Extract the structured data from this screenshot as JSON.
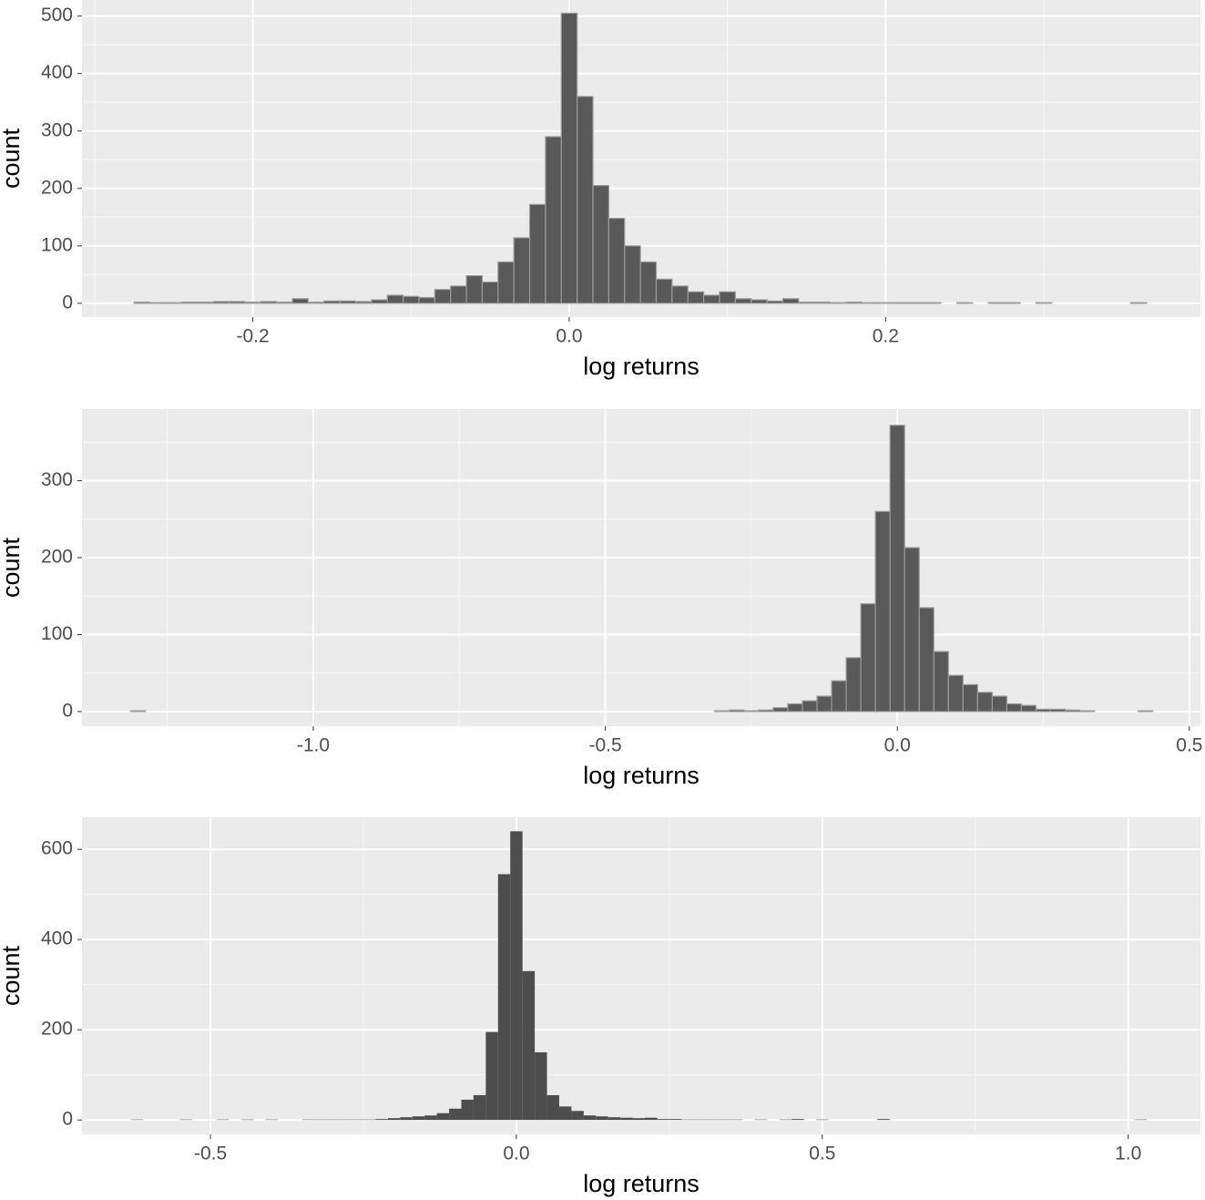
{
  "chart_data": [
    {
      "type": "histogram",
      "bins": [
        -0.275,
        -0.265,
        -0.255,
        -0.245,
        -0.235,
        -0.225,
        -0.215,
        -0.205,
        -0.195,
        -0.185,
        -0.175,
        -0.165,
        -0.155,
        -0.145,
        -0.135,
        -0.125,
        -0.115,
        -0.105,
        -0.095,
        -0.085,
        -0.075,
        -0.065,
        -0.055,
        -0.045,
        -0.035,
        -0.025,
        -0.015,
        -0.005,
        0.005,
        0.015,
        0.025,
        0.035,
        0.045,
        0.055,
        0.065,
        0.075,
        0.085,
        0.095,
        0.105,
        0.115,
        0.125,
        0.135,
        0.145,
        0.155,
        0.165,
        0.175,
        0.185,
        0.195,
        0.205,
        0.215,
        0.225,
        0.235,
        0.245,
        0.255,
        0.265,
        0.275,
        0.285,
        0.295,
        0.305,
        0.315,
        0.325,
        0.335,
        0.345,
        0.355,
        0.365
      ],
      "values": [
        2,
        1,
        1,
        2,
        2,
        3,
        3,
        2,
        3,
        2,
        8,
        2,
        4,
        4,
        3,
        6,
        14,
        12,
        10,
        24,
        30,
        48,
        37,
        72,
        114,
        172,
        290,
        505,
        360,
        205,
        148,
        100,
        72,
        42,
        30,
        20,
        14,
        20,
        8,
        6,
        4,
        8,
        2,
        2,
        1,
        2,
        1,
        1,
        1,
        1,
        1,
        0,
        1,
        0,
        1,
        1,
        0,
        1,
        0,
        0,
        0,
        0,
        0,
        1
      ],
      "color": "#595959",
      "edgecolor": "#9a9a9a",
      "xlim": [
        -0.308,
        0.399
      ],
      "ylim": [
        -24,
        528
      ],
      "xticks": [
        {
          "value": -0.2,
          "label": "-0.2"
        },
        {
          "value": 0,
          "label": "0.0"
        },
        {
          "value": 0.2,
          "label": "0.2"
        }
      ],
      "yticks": [
        0,
        100,
        200,
        300,
        400,
        500
      ],
      "xlabel": "log returns",
      "ylabel": "count",
      "grid": true
    },
    {
      "type": "histogram",
      "bins": [
        -1.3125,
        -1.2875,
        -1.2625,
        -1.2375,
        -1.2125,
        -1.1875,
        -1.1625,
        -1.1375,
        -1.1125,
        -1.0875,
        -1.0625,
        -1.0375,
        -1.0125,
        -0.9875,
        -0.9625,
        -0.9375,
        -0.9125,
        -0.8875,
        -0.8625,
        -0.8375,
        -0.8125,
        -0.7875,
        -0.7625,
        -0.7375,
        -0.7125,
        -0.6875,
        -0.6625,
        -0.6375,
        -0.6125,
        -0.5875,
        -0.5625,
        -0.5375,
        -0.5125,
        -0.4875,
        -0.4625,
        -0.4375,
        -0.4125,
        -0.3875,
        -0.3625,
        -0.3375,
        -0.3125,
        -0.2875,
        -0.2625,
        -0.2375,
        -0.2125,
        -0.1875,
        -0.1625,
        -0.1375,
        -0.1125,
        -0.0875,
        -0.0625,
        -0.0375,
        -0.0125,
        0.0125,
        0.0375,
        0.0625,
        0.0875,
        0.1125,
        0.1375,
        0.1625,
        0.1875,
        0.2125,
        0.2375,
        0.2625,
        0.2875,
        0.3125,
        0.3375,
        0.3625,
        0.3875,
        0.4125,
        0.4375
      ],
      "values": [
        1,
        0,
        0,
        0,
        0,
        0,
        0,
        0,
        0,
        0,
        0,
        0,
        0,
        0,
        0,
        0,
        0,
        0,
        0,
        0,
        0,
        0,
        0,
        0,
        0,
        0,
        0,
        0,
        0,
        0,
        0,
        0,
        0,
        0,
        0,
        0,
        0,
        0,
        0,
        0,
        1,
        2,
        1,
        2,
        5,
        10,
        14,
        20,
        40,
        70,
        140,
        260,
        372,
        213,
        135,
        78,
        47,
        35,
        25,
        20,
        10,
        8,
        3,
        3,
        2,
        1,
        0,
        0,
        0,
        1
      ],
      "color": "#595959",
      "edgecolor": "#9a9a9a",
      "xlim": [
        -1.396,
        0.519
      ],
      "ylim": [
        -19,
        393
      ],
      "xticks": [
        {
          "value": -1,
          "label": "-1.0"
        },
        -0.5,
        {
          "value": 0,
          "label": "0.0"
        },
        0.5
      ],
      "yticks": [
        0,
        100,
        200,
        300
      ],
      "xlabel": "log returns",
      "ylabel": "count",
      "grid": true
    },
    {
      "type": "histogram",
      "bins": [
        -0.63,
        -0.61,
        -0.59,
        -0.57,
        -0.55,
        -0.53,
        -0.51,
        -0.49,
        -0.47,
        -0.45,
        -0.43,
        -0.41,
        -0.39,
        -0.37,
        -0.35,
        -0.33,
        -0.31,
        -0.29,
        -0.27,
        -0.25,
        -0.23,
        -0.21,
        -0.19,
        -0.17,
        -0.15,
        -0.13,
        -0.11,
        -0.09,
        -0.07,
        -0.05,
        -0.03,
        -0.01,
        0.01,
        0.03,
        0.05,
        0.07,
        0.09,
        0.11,
        0.13,
        0.15,
        0.17,
        0.19,
        0.21,
        0.23,
        0.25,
        0.27,
        0.29,
        0.31,
        0.33,
        0.35,
        0.37,
        0.39,
        0.41,
        0.43,
        0.45,
        0.47,
        0.49,
        0.51,
        0.53,
        0.55,
        0.57,
        0.59,
        0.61,
        0.63,
        0.65,
        0.67,
        0.69,
        0.71,
        0.73,
        0.75,
        0.77,
        0.79,
        0.81,
        0.83,
        0.85,
        0.87,
        0.89,
        0.91,
        0.93,
        0.95,
        0.97,
        0.99,
        1.01,
        1.03
      ],
      "values": [
        1,
        0,
        0,
        0,
        1,
        0,
        0,
        1,
        0,
        1,
        0,
        1,
        0,
        0,
        1,
        1,
        1,
        1,
        1,
        1,
        2,
        4,
        6,
        8,
        10,
        15,
        25,
        45,
        55,
        195,
        545,
        640,
        330,
        150,
        55,
        30,
        20,
        10,
        8,
        6,
        5,
        4,
        5,
        2,
        2,
        1,
        1,
        1,
        1,
        1,
        0,
        1,
        0,
        1,
        2,
        0,
        1,
        0,
        0,
        0,
        0,
        2,
        0,
        0,
        0,
        0,
        0,
        0,
        0,
        0,
        0,
        0,
        0,
        0,
        0,
        0,
        0,
        0,
        0,
        0,
        0,
        0,
        1
      ],
      "color": "#4d4d4d",
      "xlim": [
        -0.71,
        1.118
      ],
      "ylim": [
        -32,
        671
      ],
      "xticks": [
        -0.5,
        {
          "value": 0,
          "label": "0.0"
        },
        0.5,
        {
          "value": 1,
          "label": "1.0"
        }
      ],
      "yticks": [
        0,
        200,
        400,
        600
      ],
      "xlabel": "log returns",
      "ylabel": "count",
      "grid": true
    }
  ]
}
